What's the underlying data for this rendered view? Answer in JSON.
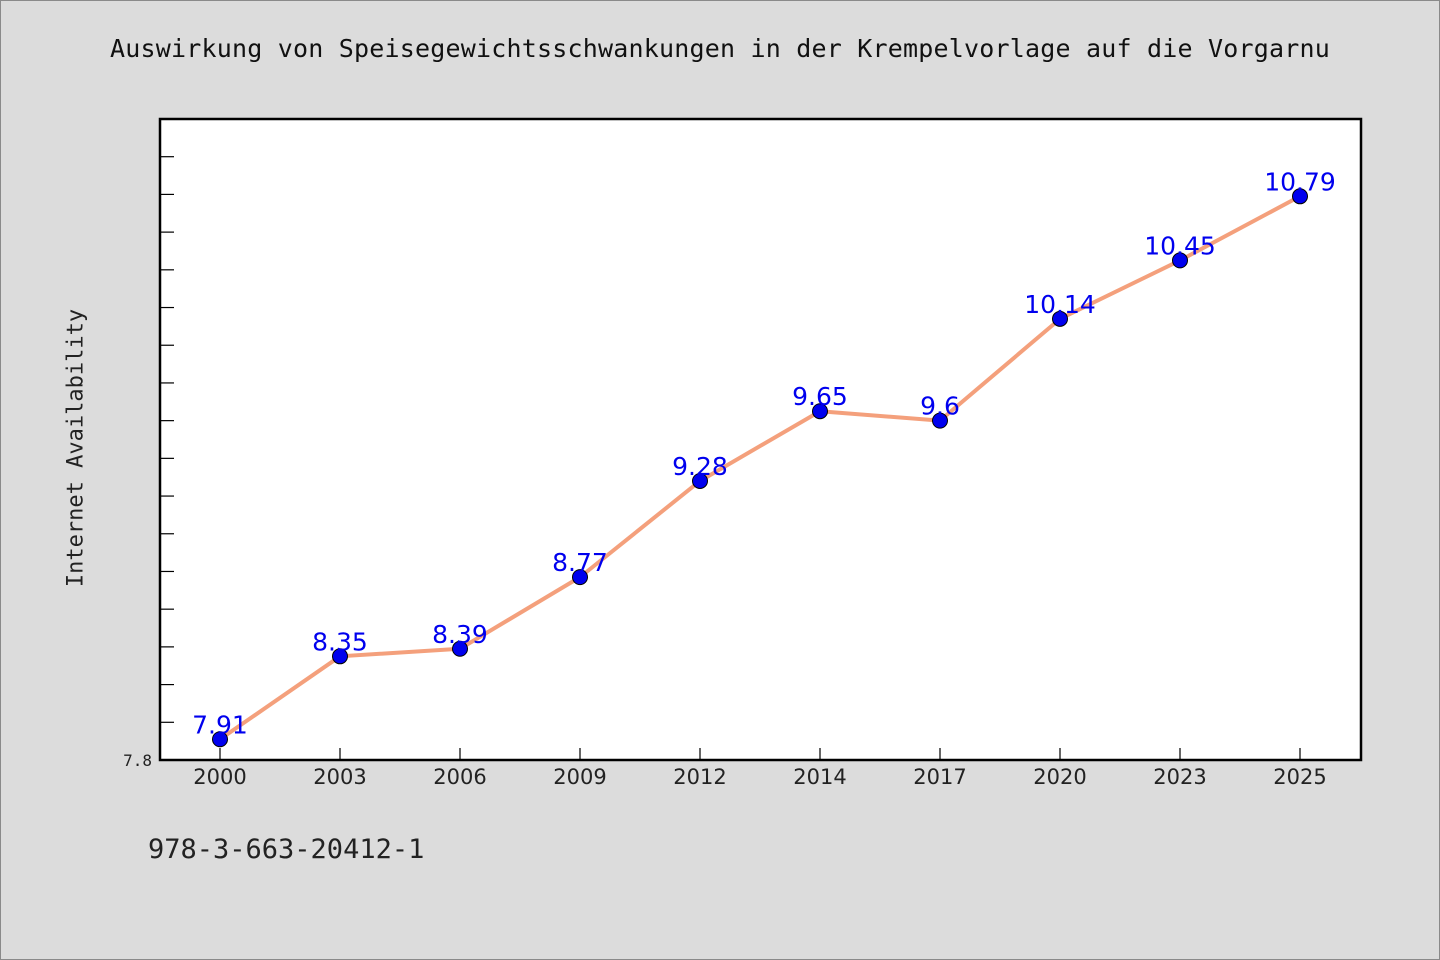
{
  "chart_data": {
    "type": "line",
    "title": "Auswirkung von Speisegewichtsschwankungen in der Krempelvorlage auf die Vorgarnu",
    "xlabel": "",
    "ylabel": "Internet Availability",
    "categories": [
      "2000",
      "2003",
      "2006",
      "2009",
      "2012",
      "2014",
      "2017",
      "2020",
      "2023",
      "2025"
    ],
    "series": [
      {
        "values": [
          7.91,
          8.35,
          8.39,
          8.77,
          9.28,
          9.65,
          9.6,
          10.14,
          10.45,
          10.79
        ]
      }
    ],
    "data_labels": [
      "7.91",
      "8.35",
      "8.39",
      "8.77",
      "9.28",
      "9.65",
      "9.6",
      "10.14",
      "10.45",
      "10.79"
    ],
    "ylim": [
      7.8,
      11.2
    ],
    "y_tick_labels": [
      "7.8"
    ],
    "grid": false,
    "legend": "none",
    "colors": {
      "line": "#f4a07c",
      "marker": "#0000ee",
      "data_label": "#0000ee"
    }
  },
  "footer_text": "978-3-663-20412-1"
}
